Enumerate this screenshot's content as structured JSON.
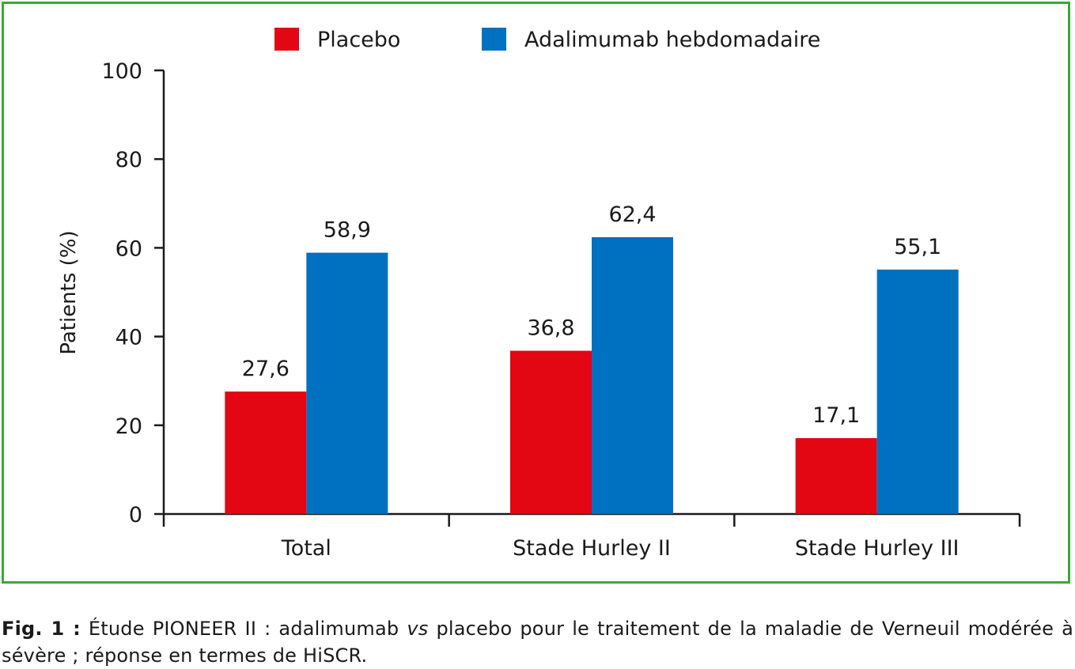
{
  "chart_data": {
    "type": "bar",
    "categories": [
      "Total",
      "Stade Hurley II",
      "Stade Hurley III"
    ],
    "series": [
      {
        "name": "Placebo",
        "values": [
          27.6,
          36.8,
          17.1
        ],
        "labels": [
          "27,6",
          "36,8",
          "17,1"
        ],
        "color": "#e30613"
      },
      {
        "name": "Adalimumab hebdomadaire",
        "values": [
          58.9,
          62.4,
          55.1
        ],
        "labels": [
          "58,9",
          "62,4",
          "55,1"
        ],
        "color": "#0070c0"
      }
    ],
    "ylabel": "Patients (%)",
    "xlabel": "",
    "ylim": [
      0,
      100
    ],
    "yticks": [
      0,
      20,
      40,
      60,
      80,
      100
    ],
    "grid": false,
    "legend_position": "top"
  },
  "caption": {
    "label": "Fig. 1 :",
    "text_before": " Étude PIONEER II : adalimumab ",
    "italic": "vs",
    "text_after": " placebo pour le traitement de la maladie de Verneuil modérée à sévère ; réponse en termes de HiSCR."
  },
  "colors": {
    "frame": "#3aa935"
  }
}
